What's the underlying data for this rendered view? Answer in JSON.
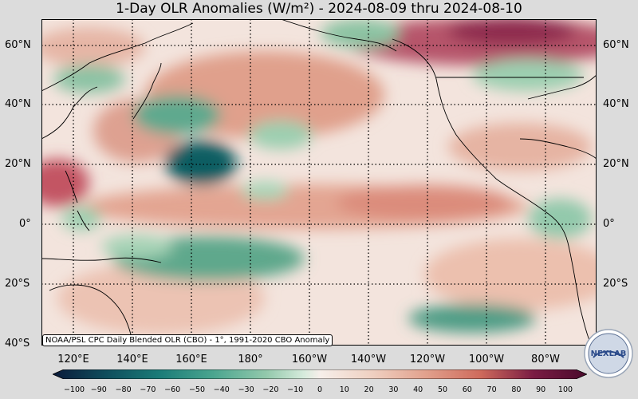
{
  "title": "1-Day OLR Anomalies (W/m²) - 2024-08-09 thru 2024-08-10",
  "lat_labels": [
    "60°N",
    "40°N",
    "20°N",
    "0°",
    "20°S",
    "40°S"
  ],
  "lon_labels": [
    "120°E",
    "140°E",
    "160°E",
    "180°",
    "160°W",
    "140°W",
    "120°W",
    "100°W",
    "80°W"
  ],
  "credit": "NOAA/PSL CPC Daily Blended OLR (CBO) - 1°, 1991-2020 CBO Anomaly",
  "colorbar": {
    "ticks": [
      "−100",
      "−90",
      "−80",
      "−70",
      "−60",
      "−50",
      "−40",
      "−30",
      "−20",
      "−10",
      "0",
      "10",
      "20",
      "30",
      "40",
      "50",
      "60",
      "70",
      "80",
      "90",
      "100"
    ],
    "range": [
      -100,
      100
    ],
    "colors": [
      "#0b1a3a",
      "#0f4d5c",
      "#1b7c78",
      "#4aa58f",
      "#93c9ac",
      "#d6ebdc",
      "#f6efea",
      "#efcfc0",
      "#e1a08c",
      "#cf6b5c",
      "#ae3c52",
      "#7a1c43",
      "#4a0a2c"
    ]
  },
  "logo_text": "NEXLAB"
}
